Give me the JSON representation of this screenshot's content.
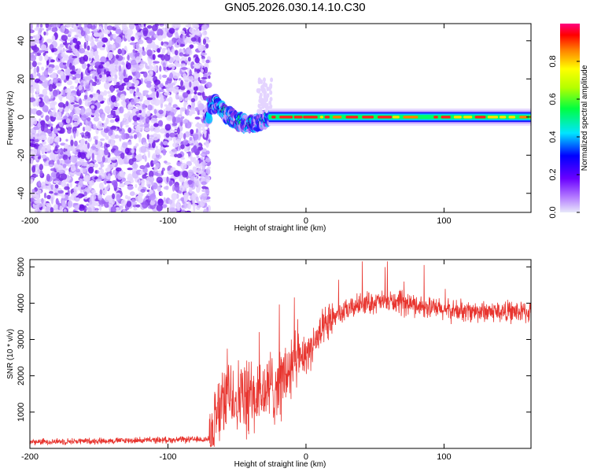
{
  "title": "GN05.2026.030.14.10.C30",
  "chart_data": [
    {
      "type": "heatmap",
      "xlabel": "Height of straight line (km)",
      "ylabel": "Frequency (Hz)",
      "xlim": [
        -200,
        163
      ],
      "ylim": [
        -50,
        49
      ],
      "xticks": [
        -200,
        -100,
        0,
        100
      ],
      "yticks": [
        -40,
        -20,
        0,
        20,
        40
      ],
      "xtick_labels": [
        "-200",
        "-100",
        "0",
        "100"
      ],
      "ytick_labels": [
        "-40",
        "-20",
        "0",
        "20",
        "40"
      ],
      "noise_region_x": [
        -200,
        -70
      ],
      "signal_track": {
        "x": [
          -70,
          -65,
          -60,
          -55,
          -50,
          -45,
          -40,
          -35,
          -30,
          -25,
          0,
          50,
          100,
          163
        ],
        "freq_hz": [
          6,
          7,
          3,
          0,
          -2,
          -3,
          -4,
          -3,
          -1,
          0,
          0,
          0,
          0,
          0
        ]
      },
      "colorbar": {
        "label": "Normalized spectral amplitude",
        "range": [
          0,
          1
        ],
        "ticks": [
          0.0,
          0.2,
          0.4,
          0.6,
          0.8
        ],
        "tick_labels": [
          "0.0",
          "0.2",
          "0.4",
          "0.6",
          "0.8"
        ]
      }
    },
    {
      "type": "line",
      "color": "#e8352f",
      "xlabel": "Height of straight line (km)",
      "ylabel": "SNR (10 * v/v)",
      "xlim": [
        -200,
        163
      ],
      "ylim": [
        0,
        5200
      ],
      "xticks": [
        -200,
        -100,
        0,
        100
      ],
      "yticks": [
        1000,
        2000,
        3000,
        4000,
        5000
      ],
      "xtick_labels": [
        "-200",
        "-100",
        "0",
        "100"
      ],
      "ytick_labels": [
        "1000",
        "2000",
        "3000",
        "4000",
        "5000"
      ],
      "trend": {
        "x": [
          -200,
          -70,
          -58,
          -40,
          -20,
          0,
          20,
          40,
          60,
          80,
          100,
          163
        ],
        "snr": [
          180,
          250,
          1500,
          1300,
          1800,
          2600,
          3600,
          4000,
          4050,
          3950,
          3800,
          3750
        ]
      }
    }
  ]
}
